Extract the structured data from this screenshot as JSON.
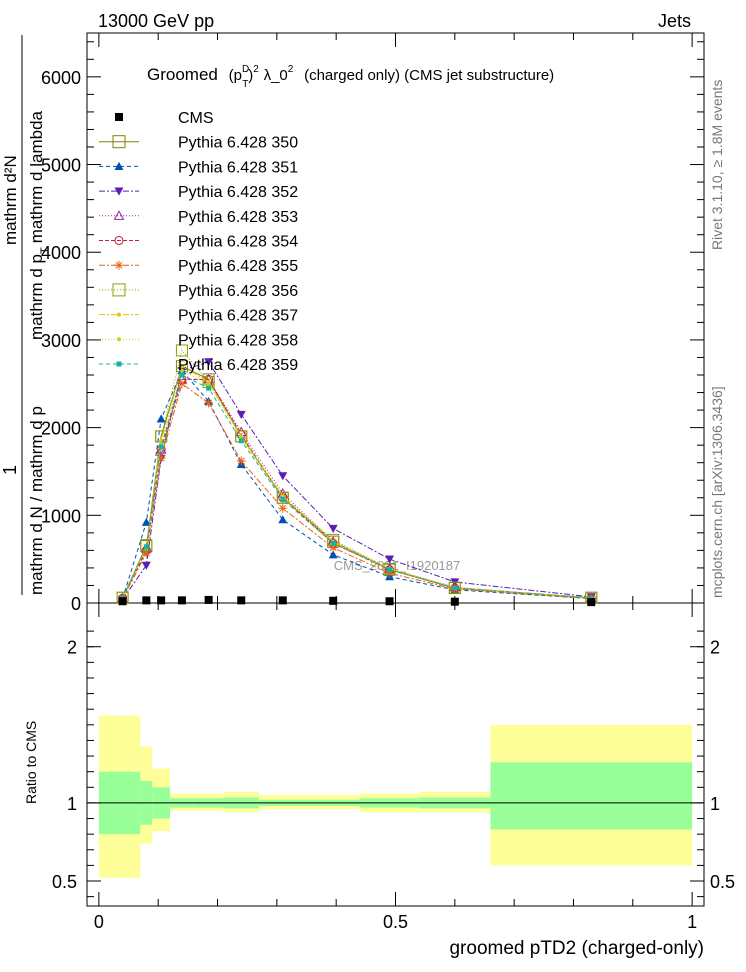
{
  "header": {
    "left": "13000 GeV pp",
    "right": "Jets",
    "side_rivet": "Rivet 3.1.10, ≥ 1.8M events",
    "side_mcplots": "mcplots.cern.ch [arXiv:1306.3436]"
  },
  "chart_data": {
    "type": "line",
    "title": "Groomed (p_T^D)^2 λ_0^2 (charged only) (CMS jet substructure)",
    "title_parts": {
      "a": "Groomed",
      "b": "(p",
      "b_sup": "D",
      "b_sub": "T",
      "c": ")",
      "c_sup": "2",
      "d": "λ_0",
      "d_sup": "2",
      "e": "(charged only) (CMS jet substructure)"
    },
    "xlabel": "groomed pTD2 (charged-only)",
    "ylabel_parts": {
      "frac_num": "1",
      "frac_den": "mathrm d N / mathrm d p",
      "num": "mathrm d²N",
      "den_a": "mathrm d p",
      "den_sub": "T",
      "den_b": "mathrm d lambda"
    },
    "ratio_ylabel": "Ratio to CMS",
    "watermark": "CMS_2021_I1920187",
    "xlim": [
      -0.02,
      1.02
    ],
    "ylim": [
      0,
      6500
    ],
    "ratio_ylim": [
      0.34,
      2.28
    ],
    "x_ticks": [
      {
        "v": 0,
        "label": "0"
      },
      {
        "v": 0.5,
        "label": "0.5"
      },
      {
        "v": 1,
        "label": "1"
      }
    ],
    "y_ticks": [
      {
        "v": 0,
        "label": "0"
      },
      {
        "v": 1000,
        "label": "1000"
      },
      {
        "v": 2000,
        "label": "2000"
      },
      {
        "v": 3000,
        "label": "3000"
      },
      {
        "v": 4000,
        "label": "4000"
      },
      {
        "v": 5000,
        "label": "5000"
      },
      {
        "v": 6000,
        "label": "6000"
      }
    ],
    "ratio_ticks": [
      {
        "v": 0.5,
        "label": "0.5"
      },
      {
        "v": 1,
        "label": "1"
      },
      {
        "v": 2,
        "label": "2"
      }
    ],
    "x": [
      0.04,
      0.08,
      0.105,
      0.14,
      0.185,
      0.24,
      0.31,
      0.395,
      0.49,
      0.6,
      0.83
    ],
    "bin_edges": [
      0.0,
      0.07,
      0.09,
      0.12,
      0.16,
      0.21,
      0.27,
      0.35,
      0.44,
      0.54,
      0.66,
      1.0
    ],
    "cms": {
      "name": "CMS",
      "values": [
        20,
        30,
        30,
        30,
        35,
        30,
        30,
        25,
        20,
        15,
        10
      ]
    },
    "ratio_bands": {
      "green_lo": [
        0.8,
        0.86,
        0.9,
        0.97,
        0.97,
        0.965,
        0.98,
        0.98,
        0.97,
        0.965,
        0.83
      ],
      "green_hi": [
        1.2,
        1.14,
        1.1,
        1.03,
        1.03,
        1.035,
        1.02,
        1.02,
        1.03,
        1.035,
        1.26
      ],
      "yellow_lo": [
        0.52,
        0.74,
        0.82,
        0.95,
        0.95,
        0.94,
        0.96,
        0.96,
        0.94,
        0.94,
        0.6
      ],
      "yellow_hi": [
        1.56,
        1.36,
        1.22,
        1.06,
        1.06,
        1.07,
        1.05,
        1.05,
        1.06,
        1.07,
        1.5
      ]
    },
    "series": [
      {
        "name": "Pythia 6.428 350",
        "color": "#808000",
        "marker": "square-open",
        "dash": "",
        "values": [
          60,
          650,
          1900,
          2700,
          2550,
          1900,
          1200,
          700,
          380,
          170,
          60
        ]
      },
      {
        "name": "Pythia 6.428 351",
        "color": "#0050b4",
        "marker": "triangle-up",
        "dash": "4,3",
        "values": [
          50,
          920,
          2100,
          2650,
          2300,
          1580,
          950,
          550,
          300,
          150,
          50
        ]
      },
      {
        "name": "Pythia 6.428 352",
        "color": "#5a1eb4",
        "marker": "triangle-down",
        "dash": "6,2,2,2",
        "values": [
          40,
          430,
          1650,
          2650,
          2750,
          2150,
          1450,
          850,
          500,
          240,
          70
        ]
      },
      {
        "name": "Pythia 6.428 353",
        "color": "#a020a0",
        "marker": "triangle-open",
        "dash": "1,2",
        "values": [
          55,
          620,
          1750,
          2550,
          2550,
          1950,
          1250,
          700,
          390,
          180,
          55
        ]
      },
      {
        "name": "Pythia 6.428 354",
        "color": "#c81e3c",
        "marker": "circle-open",
        "dash": "4,2",
        "values": [
          55,
          600,
          1750,
          2550,
          2550,
          1920,
          1200,
          680,
          380,
          170,
          55
        ]
      },
      {
        "name": "Pythia 6.428 355",
        "color": "#e66414",
        "marker": "star",
        "dash": "6,2,2,2",
        "values": [
          45,
          570,
          1650,
          2500,
          2280,
          1620,
          1080,
          630,
          340,
          160,
          50
        ]
      },
      {
        "name": "Pythia 6.428 356",
        "color": "#8ca000",
        "marker": "square-open",
        "dash": "1,2",
        "values": [
          60,
          660,
          1900,
          2880,
          2520,
          1900,
          1200,
          720,
          390,
          175,
          60
        ]
      },
      {
        "name": "Pythia 6.428 357",
        "color": "#e6c800",
        "marker": "dot",
        "dash": "6,2,2,2",
        "values": [
          55,
          640,
          1850,
          2700,
          2520,
          1900,
          1220,
          700,
          390,
          175,
          55
        ]
      },
      {
        "name": "Pythia 6.428 358",
        "color": "#b4dc00",
        "marker": "dot",
        "dash": "1,2",
        "values": [
          55,
          630,
          1800,
          2650,
          2500,
          1880,
          1200,
          690,
          385,
          172,
          55
        ]
      },
      {
        "name": "Pythia 6.428 359",
        "color": "#14b4a0",
        "marker": "dot-square",
        "dash": "4,3",
        "values": [
          55,
          640,
          1780,
          2600,
          2450,
          1850,
          1180,
          680,
          380,
          170,
          55
        ]
      }
    ]
  }
}
